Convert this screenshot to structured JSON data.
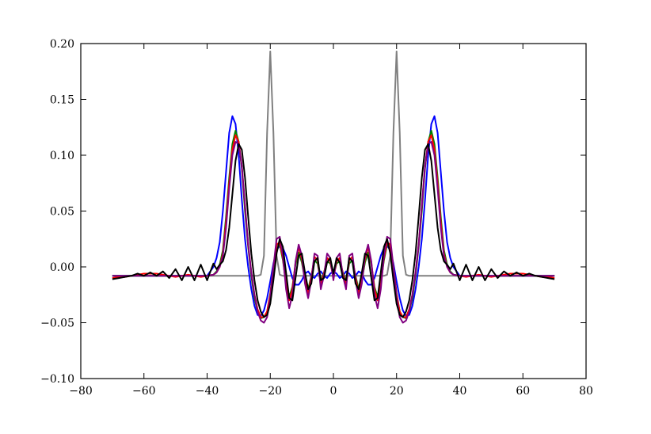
{
  "chart_data": {
    "type": "line",
    "xlim": [
      -80,
      80
    ],
    "ylim": [
      -0.1,
      0.2
    ],
    "xticks": [
      {
        "value": -80,
        "label": "−80"
      },
      {
        "value": -60,
        "label": "−60"
      },
      {
        "value": -40,
        "label": "−40"
      },
      {
        "value": -20,
        "label": "−20"
      },
      0,
      20,
      40,
      60,
      80
    ],
    "yticks": [
      {
        "value": -0.1,
        "label": "−0.10"
      },
      {
        "value": -0.05,
        "label": "−0.05"
      },
      {
        "value": 0,
        "label": "0.00"
      },
      {
        "value": 0.05,
        "label": "0.05"
      },
      {
        "value": 0.1,
        "label": "0.10"
      },
      {
        "value": 0.15,
        "label": "0.15"
      },
      {
        "value": 0.2,
        "label": "0.20"
      }
    ],
    "grid": false,
    "x": [
      -70,
      -68,
      -66,
      -64,
      -62,
      -60,
      -58,
      -56,
      -54,
      -52,
      -50,
      -48,
      -46,
      -44,
      -42,
      -40,
      -38,
      -37,
      -36,
      -35,
      -34,
      -33,
      -32,
      -31,
      -30,
      -29,
      -28,
      -27,
      -26,
      -25,
      -24,
      -23,
      -22,
      -21,
      -20,
      -19,
      -18,
      -17,
      -16,
      -15,
      -14,
      -13,
      -12,
      -11,
      -10,
      -9,
      -8,
      -7,
      -6,
      -5,
      -4,
      -3,
      -2,
      -1,
      0,
      1,
      2,
      3,
      4,
      5,
      6,
      7,
      8,
      9,
      10,
      11,
      12,
      13,
      14,
      15,
      16,
      17,
      18,
      19,
      20,
      21,
      22,
      23,
      24,
      25,
      26,
      27,
      28,
      29,
      30,
      31,
      32,
      33,
      34,
      35,
      36,
      37,
      38,
      40,
      42,
      44,
      46,
      48,
      50,
      52,
      54,
      56,
      58,
      60,
      62,
      64,
      66,
      68,
      70
    ],
    "series": [
      {
        "color": "#808080",
        "values": [
          -0.008,
          -0.008,
          -0.008,
          -0.008,
          -0.008,
          -0.008,
          -0.008,
          -0.008,
          -0.008,
          -0.008,
          -0.008,
          -0.008,
          -0.008,
          -0.008,
          -0.008,
          -0.008,
          -0.008,
          -0.008,
          -0.008,
          -0.008,
          -0.008,
          -0.008,
          -0.008,
          -0.008,
          -0.008,
          -0.008,
          -0.008,
          -0.008,
          -0.008,
          -0.008,
          -0.008,
          -0.007,
          0.01,
          0.12,
          0.193,
          0.12,
          0.01,
          -0.007,
          -0.008,
          -0.008,
          -0.008,
          -0.008,
          -0.008,
          -0.008,
          -0.008,
          -0.008,
          -0.008,
          -0.008,
          -0.008,
          -0.008,
          -0.008,
          -0.008,
          -0.008,
          -0.008,
          -0.008,
          -0.008,
          -0.008,
          -0.008,
          -0.008,
          -0.008,
          -0.008,
          -0.008,
          -0.008,
          -0.008,
          -0.008,
          -0.008,
          -0.008,
          -0.008,
          -0.008,
          -0.008,
          -0.008,
          -0.007,
          0.01,
          0.12,
          0.193,
          0.12,
          0.01,
          -0.007,
          -0.008,
          -0.008,
          -0.008,
          -0.008,
          -0.008,
          -0.008,
          -0.008,
          -0.008,
          -0.008,
          -0.008,
          -0.008,
          -0.008,
          -0.008,
          -0.008,
          -0.008,
          -0.008,
          -0.008,
          -0.008,
          -0.008,
          -0.008,
          -0.008,
          -0.008,
          -0.008,
          -0.008,
          -0.008,
          -0.008,
          -0.008,
          -0.008,
          -0.008,
          -0.008,
          -0.008
        ]
      },
      {
        "color": "#0000ff",
        "values": [
          -0.008,
          -0.008,
          -0.008,
          -0.008,
          -0.008,
          -0.008,
          -0.008,
          -0.008,
          -0.008,
          -0.008,
          -0.008,
          -0.008,
          -0.008,
          -0.008,
          -0.008,
          -0.008,
          0.0,
          0.008,
          0.022,
          0.05,
          0.085,
          0.12,
          0.135,
          0.128,
          0.1,
          0.06,
          0.025,
          0.0,
          -0.02,
          -0.035,
          -0.043,
          -0.044,
          -0.039,
          -0.028,
          -0.013,
          0.003,
          0.015,
          0.019,
          0.017,
          0.01,
          0.0,
          -0.01,
          -0.016,
          -0.016,
          -0.012,
          -0.006,
          -0.004,
          -0.008,
          -0.01,
          -0.006,
          -0.004,
          -0.008,
          -0.01,
          -0.006,
          -0.004,
          -0.006,
          -0.01,
          -0.008,
          -0.004,
          -0.006,
          -0.01,
          -0.008,
          -0.004,
          -0.006,
          -0.012,
          -0.016,
          -0.016,
          -0.01,
          0.0,
          0.01,
          0.017,
          0.019,
          0.015,
          0.003,
          -0.013,
          -0.028,
          -0.039,
          -0.044,
          -0.043,
          -0.035,
          -0.02,
          0.0,
          0.025,
          0.06,
          0.1,
          0.128,
          0.135,
          0.12,
          0.085,
          0.05,
          0.022,
          0.008,
          0.0,
          -0.008,
          -0.008,
          -0.008,
          -0.008,
          -0.008,
          -0.008,
          -0.008,
          -0.008,
          -0.008,
          -0.008,
          -0.008,
          -0.008,
          -0.008,
          -0.008,
          -0.008,
          -0.008
        ]
      },
      {
        "color": "#008000",
        "values": [
          -0.008,
          -0.008,
          -0.008,
          -0.008,
          -0.008,
          -0.008,
          -0.008,
          -0.008,
          -0.008,
          -0.008,
          -0.008,
          -0.008,
          -0.008,
          -0.008,
          -0.008,
          -0.008,
          -0.007,
          -0.004,
          0.002,
          0.015,
          0.045,
          0.08,
          0.11,
          0.122,
          0.112,
          0.088,
          0.05,
          0.018,
          -0.008,
          -0.028,
          -0.04,
          -0.046,
          -0.045,
          -0.04,
          -0.024,
          0.0,
          0.02,
          0.02,
          0.006,
          -0.015,
          -0.027,
          -0.018,
          0.002,
          0.013,
          0.004,
          -0.012,
          -0.02,
          -0.008,
          0.006,
          0.003,
          -0.013,
          -0.005,
          0.005,
          0.003,
          -0.008,
          0.003,
          0.005,
          -0.005,
          -0.013,
          0.003,
          0.006,
          -0.008,
          -0.02,
          -0.012,
          0.004,
          0.013,
          0.002,
          -0.018,
          -0.027,
          -0.015,
          0.006,
          0.02,
          0.02,
          0.0,
          -0.024,
          -0.04,
          -0.045,
          -0.046,
          -0.04,
          -0.028,
          -0.008,
          0.018,
          0.05,
          0.088,
          0.112,
          0.122,
          0.11,
          0.08,
          0.045,
          0.015,
          0.002,
          -0.004,
          -0.007,
          -0.008,
          -0.008,
          -0.008,
          -0.008,
          -0.008,
          -0.008,
          -0.008,
          -0.008,
          -0.008,
          -0.008,
          -0.008,
          -0.008,
          -0.008,
          -0.008,
          -0.008,
          -0.008
        ]
      },
      {
        "color": "#ff0000",
        "values": [
          -0.01,
          -0.009,
          -0.009,
          -0.008,
          -0.007,
          -0.006,
          -0.006,
          -0.006,
          -0.007,
          -0.008,
          -0.009,
          -0.008,
          -0.007,
          -0.008,
          -0.009,
          -0.008,
          -0.007,
          -0.005,
          0.0,
          0.012,
          0.04,
          0.075,
          0.105,
          0.118,
          0.112,
          0.09,
          0.055,
          0.02,
          -0.005,
          -0.025,
          -0.038,
          -0.045,
          -0.045,
          -0.04,
          -0.025,
          0.0,
          0.02,
          0.022,
          0.008,
          -0.016,
          -0.03,
          -0.02,
          0.004,
          0.018,
          0.007,
          -0.012,
          -0.024,
          -0.009,
          0.009,
          0.006,
          -0.016,
          -0.006,
          0.008,
          0.005,
          -0.01,
          0.005,
          0.008,
          -0.006,
          -0.016,
          0.006,
          0.009,
          -0.009,
          -0.024,
          -0.012,
          0.007,
          0.018,
          0.004,
          -0.02,
          -0.03,
          -0.016,
          0.008,
          0.022,
          0.02,
          0.0,
          -0.025,
          -0.04,
          -0.045,
          -0.045,
          -0.038,
          -0.025,
          -0.005,
          0.02,
          0.055,
          0.09,
          0.112,
          0.118,
          0.105,
          0.075,
          0.04,
          0.012,
          0.0,
          -0.005,
          -0.007,
          -0.008,
          -0.009,
          -0.008,
          -0.007,
          -0.008,
          -0.009,
          -0.008,
          -0.007,
          -0.006,
          -0.006,
          -0.006,
          -0.007,
          -0.008,
          -0.009,
          -0.009,
          -0.01
        ]
      },
      {
        "color": "#800080",
        "values": [
          -0.008,
          -0.008,
          -0.008,
          -0.008,
          -0.008,
          -0.008,
          -0.008,
          -0.008,
          -0.008,
          -0.008,
          -0.008,
          -0.008,
          -0.008,
          -0.008,
          -0.008,
          -0.008,
          -0.007,
          -0.005,
          0.0,
          0.01,
          0.035,
          0.07,
          0.1,
          0.112,
          0.11,
          0.09,
          0.055,
          0.02,
          -0.005,
          -0.025,
          -0.04,
          -0.048,
          -0.05,
          -0.045,
          -0.028,
          0.0,
          0.025,
          0.027,
          0.01,
          -0.02,
          -0.037,
          -0.025,
          0.005,
          0.02,
          0.01,
          -0.015,
          -0.028,
          -0.012,
          0.012,
          0.01,
          -0.02,
          -0.008,
          0.012,
          0.008,
          -0.012,
          0.008,
          0.012,
          -0.008,
          -0.02,
          0.01,
          0.012,
          -0.012,
          -0.028,
          -0.015,
          0.01,
          0.02,
          0.005,
          -0.025,
          -0.037,
          -0.02,
          0.01,
          0.027,
          0.025,
          0.0,
          -0.028,
          -0.045,
          -0.05,
          -0.048,
          -0.04,
          -0.025,
          -0.005,
          0.02,
          0.055,
          0.09,
          0.11,
          0.112,
          0.1,
          0.07,
          0.035,
          0.01,
          0.0,
          -0.005,
          -0.007,
          -0.008,
          -0.008,
          -0.008,
          -0.008,
          -0.008,
          -0.008,
          -0.008,
          -0.008,
          -0.008,
          -0.008,
          -0.008,
          -0.008,
          -0.008,
          -0.008,
          -0.008,
          -0.008
        ]
      },
      {
        "color": "#000000",
        "values": [
          -0.011,
          -0.01,
          -0.009,
          -0.008,
          -0.006,
          -0.008,
          -0.005,
          -0.008,
          -0.004,
          -0.01,
          -0.002,
          -0.012,
          0.0,
          -0.012,
          0.002,
          -0.012,
          0.003,
          -0.002,
          0.002,
          0.005,
          0.015,
          0.035,
          0.065,
          0.095,
          0.11,
          0.105,
          0.08,
          0.045,
          0.012,
          -0.012,
          -0.03,
          -0.04,
          -0.045,
          -0.043,
          -0.033,
          -0.012,
          0.012,
          0.025,
          0.018,
          -0.005,
          -0.028,
          -0.03,
          -0.01,
          0.01,
          0.012,
          -0.005,
          -0.02,
          -0.015,
          0.005,
          0.008,
          -0.012,
          -0.01,
          0.004,
          0.008,
          -0.006,
          0.008,
          0.004,
          -0.01,
          -0.012,
          0.008,
          0.005,
          -0.015,
          -0.02,
          -0.005,
          0.012,
          0.01,
          -0.01,
          -0.03,
          -0.028,
          -0.005,
          0.018,
          0.025,
          0.012,
          -0.012,
          -0.033,
          -0.043,
          -0.045,
          -0.04,
          -0.03,
          -0.012,
          0.012,
          0.045,
          0.08,
          0.105,
          0.11,
          0.095,
          0.065,
          0.035,
          0.015,
          0.005,
          0.002,
          -0.002,
          0.003,
          -0.012,
          0.002,
          -0.012,
          0.0,
          -0.012,
          -0.002,
          -0.01,
          -0.004,
          -0.008,
          -0.005,
          -0.008,
          -0.006,
          -0.008,
          -0.009,
          -0.01,
          -0.011
        ]
      }
    ]
  }
}
